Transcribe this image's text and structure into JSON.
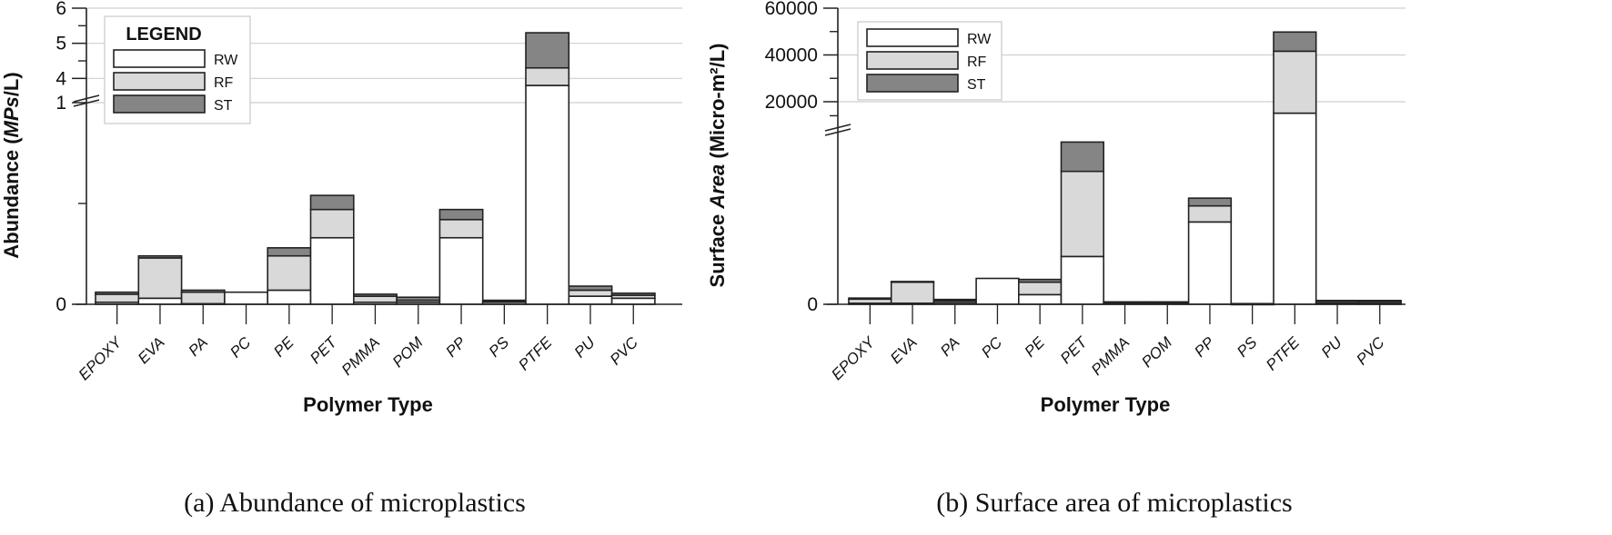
{
  "chart_data": [
    {
      "type": "bar",
      "stacked": true,
      "caption": "(a) Abundance of microplastics",
      "xlabel": "Polymer Type",
      "ylabel_prefix": "Abundance (",
      "ylabel_italic": "MPs",
      "ylabel_suffix": "/L)",
      "categories": [
        "EPOXY",
        "EVA",
        "PA",
        "PC",
        "PE",
        "PET",
        "PMMA",
        "POM",
        "PP",
        "PS",
        "PTFE",
        "PU",
        "PVC"
      ],
      "series": [
        {
          "name": "RW",
          "color": "#ffffff",
          "values": [
            0.01,
            0.03,
            0.003,
            0.06,
            0.07,
            0.33,
            0.01,
            0.01,
            0.33,
            0.01,
            3.8,
            0.04,
            0.03
          ]
        },
        {
          "name": "RF",
          "color": "#d9d9d9",
          "values": [
            0.04,
            0.2,
            0.057,
            0.0,
            0.17,
            0.14,
            0.03,
            0.01,
            0.09,
            0.005,
            0.5,
            0.03,
            0.015
          ]
        },
        {
          "name": "ST",
          "color": "#858585",
          "values": [
            0.01,
            0.01,
            0.01,
            0.0,
            0.04,
            0.07,
            0.01,
            0.015,
            0.05,
            0.005,
            1.0,
            0.02,
            0.01
          ]
        }
      ],
      "y_lower_ticks": [
        "0",
        "1"
      ],
      "y_upper_ticks": [
        "4",
        "5",
        "6"
      ],
      "ylim_lower": [
        0,
        1
      ],
      "ylim_upper": [
        3.75,
        6
      ],
      "grid": true,
      "legend": {
        "title": "LEGEND",
        "placement": "top-left"
      }
    },
    {
      "type": "bar",
      "stacked": true,
      "caption": "(b) Surface area of microplastics",
      "xlabel": "Polymer Type",
      "ylabel_prefix": "Surface ",
      "ylabel_italic": "Area",
      "ylabel_suffix": " (Micro-m²/L)",
      "categories": [
        "EPOXY",
        "EVA",
        "PA",
        "PC",
        "PE",
        "PET",
        "PMMA",
        "POM",
        "PP",
        "PS",
        "PTFE",
        "PU",
        "PVC"
      ],
      "series": [
        {
          "name": "RW",
          "color": "#ffffff",
          "values": [
            60,
            60,
            100,
            1500,
            560,
            2770,
            50,
            50,
            4770,
            20,
            15100,
            80,
            60
          ]
        },
        {
          "name": "RF",
          "color": "#d9d9d9",
          "values": [
            240,
            1220,
            100,
            0,
            720,
            4930,
            50,
            50,
            930,
            10,
            26500,
            100,
            100
          ]
        },
        {
          "name": "ST",
          "color": "#858585",
          "values": [
            60,
            40,
            80,
            0,
            160,
            1700,
            40,
            40,
            450,
            10,
            8200,
            40,
            60
          ]
        }
      ],
      "y_lower_ticks": [
        "0"
      ],
      "y_upper_ticks": [
        "20000",
        "40000",
        "60000"
      ],
      "ylim_lower": [
        0,
        10000
      ],
      "ylim_upper": [
        13000,
        60000
      ],
      "grid": true,
      "legend": {
        "title": "",
        "placement": "top-left"
      }
    }
  ]
}
